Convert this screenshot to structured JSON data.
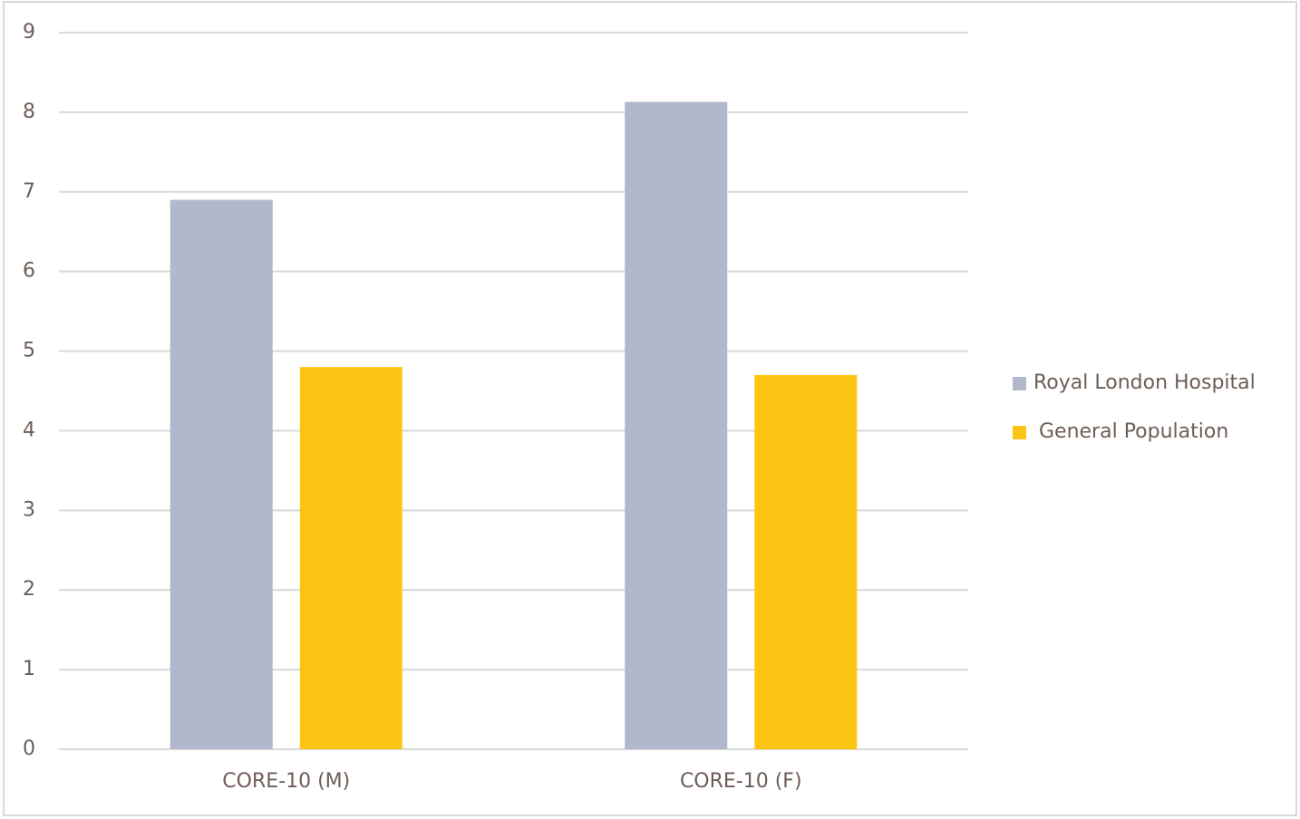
{
  "chart_data": {
    "type": "bar",
    "categories": [
      "CORE-10 (M)",
      "CORE-10 (F)"
    ],
    "series": [
      {
        "name": "Royal London Hospital",
        "color": "#b2b8cc",
        "values": [
          6.9,
          8.13
        ]
      },
      {
        "name": "General Population",
        "color": "#fdc513",
        "values": [
          4.8,
          4.7
        ]
      }
    ],
    "ylim": [
      0,
      9
    ],
    "yticks": [
      0,
      1,
      2,
      3,
      4,
      5,
      6,
      7,
      8,
      9
    ],
    "grid": true,
    "legend": "right"
  }
}
